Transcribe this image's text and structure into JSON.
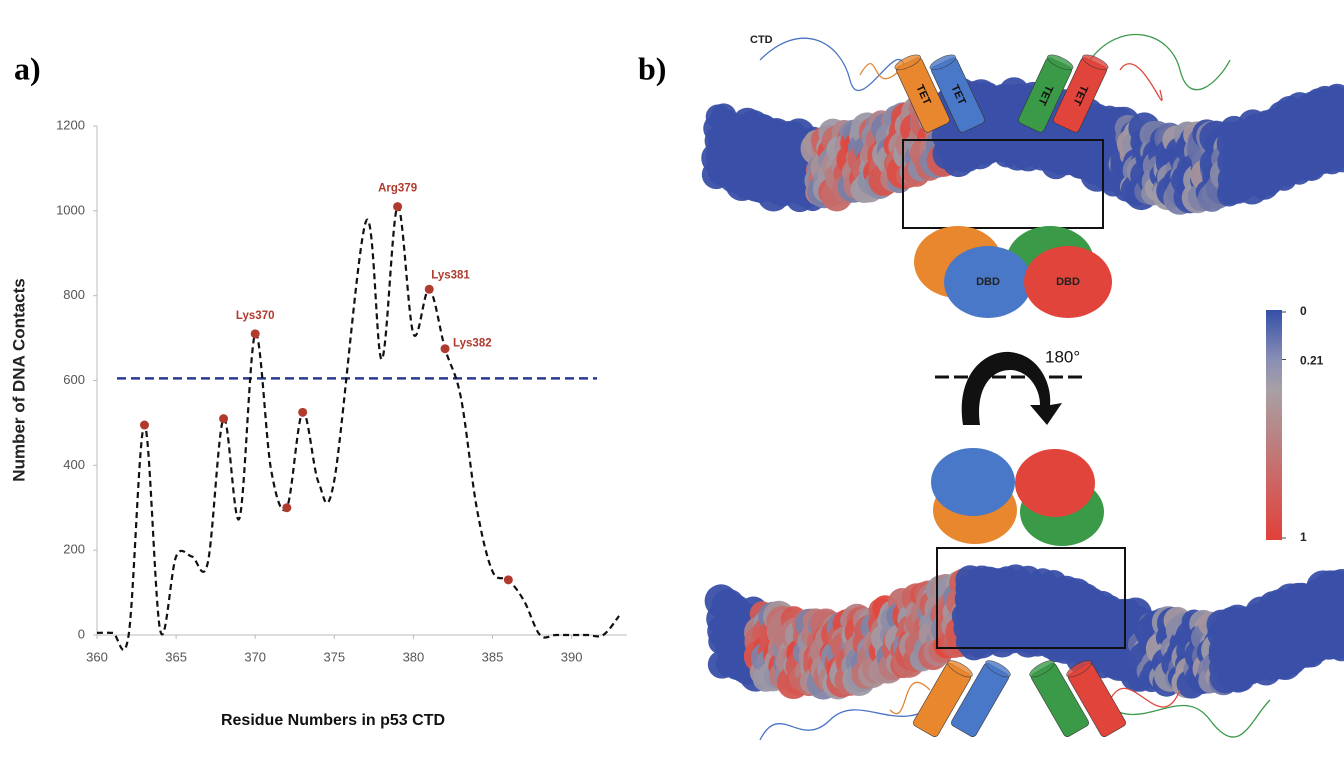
{
  "chart_data": {
    "type": "line",
    "panel_label": "a)",
    "y_label": "Number of DNA Contacts",
    "x_label": "Residue Numbers in p53 CTD",
    "xlim": [
      360,
      393.5
    ],
    "xticks": [
      360,
      365,
      370,
      375,
      380,
      385,
      390
    ],
    "ylim": [
      0,
      1200
    ],
    "yticks": [
      0,
      200,
      400,
      600,
      800,
      1000,
      1200
    ],
    "series": [
      {
        "color": "#111111",
        "x": [
          360,
          361,
          362,
          363,
          364,
          365,
          366,
          367,
          368,
          369,
          370,
          371,
          372,
          373,
          374,
          375,
          377,
          378,
          379,
          380,
          381,
          382,
          383,
          384,
          385,
          386,
          387,
          388,
          389,
          390,
          391,
          392,
          393
        ],
        "values": [
          5,
          5,
          0,
          495,
          10,
          185,
          185,
          170,
          510,
          275,
          710,
          390,
          300,
          525,
          360,
          365,
          975,
          650,
          1010,
          710,
          815,
          675,
          560,
          300,
          150,
          130,
          80,
          0,
          0,
          0,
          0,
          0,
          45
        ]
      },
      {
        "color": "#b03a2e",
        "x": [
          363,
          368,
          370,
          372,
          373,
          379,
          381,
          382,
          386
        ],
        "values": [
          495,
          510,
          710,
          300,
          525,
          1010,
          815,
          675,
          130
        ],
        "labels": [
          null,
          null,
          "Lys370",
          null,
          null,
          "Arg379",
          "Lys381",
          "Lys382",
          null
        ]
      }
    ],
    "threshold": {
      "value": 605,
      "color": "#2b3a8f"
    }
  },
  "diagram": {
    "panel_label": "b)",
    "ctd_label": "CTD",
    "tet_labels": [
      "TET",
      "TET",
      "TET",
      "TET"
    ],
    "dbd_labels": [
      "DBD",
      "DBD"
    ],
    "rotation_label": "180°",
    "colorbar": {
      "lim": [
        0,
        1
      ],
      "ticks": [
        0,
        0.21,
        1
      ]
    }
  }
}
